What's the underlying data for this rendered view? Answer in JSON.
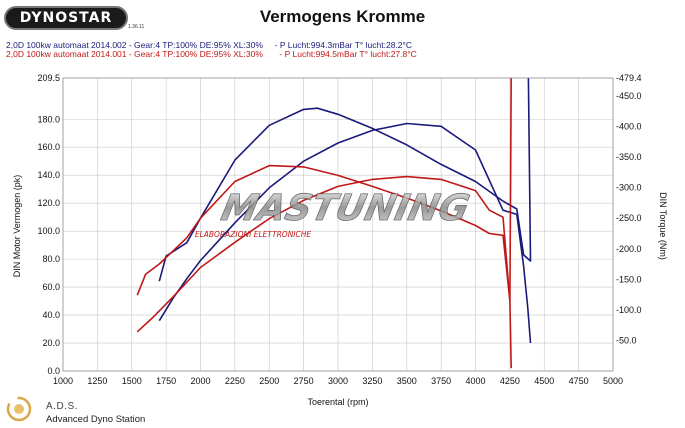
{
  "header": {
    "logo_text": "DYNOSTAR",
    "logo_version": "1.36.11",
    "title": "Vermogens Kromme",
    "runs": [
      "2,0D 100kw automaat 2014.002 - Gear:4 TP:100% DE:95% XL:30%     - P Lucht:994.3mBar T° lucht:28.2°C",
      "2,0D 100kw automaat 2014.001 - Gear:4 TP:100% DE:95% XL:30%       - P Lucht:994.5mBar T° lucht:27.8°C"
    ]
  },
  "watermark": {
    "brand_main": "MASTUNING",
    "brand_sub": "ELABORAZIONI ELETTRONICHE"
  },
  "footer": {
    "brand": "A.D.S.",
    "subtitle": "Advanced Dyno Station"
  },
  "colors": {
    "run_002": "#1a1a7a",
    "run_001": "#c01818",
    "grid": "#c8c8c8"
  },
  "chart_data": {
    "type": "line",
    "title": "Vermogens Kromme",
    "xlabel": "Toerental (rpm)",
    "ylabel_left": "DIN Motor Vermogen (pk)",
    "ylabel_right": "DIN Torque (Nm)",
    "xlim": [
      1000,
      5000
    ],
    "ylim_left": [
      0,
      209.5
    ],
    "ylim_right": [
      0,
      479.4
    ],
    "x_ticks": [
      "1000",
      "1250",
      "1500",
      "1750",
      "2000",
      "2250",
      "2500",
      "2750",
      "3000",
      "3250",
      "3500",
      "3750",
      "4000",
      "4250",
      "4500",
      "4750",
      "5000"
    ],
    "y_left_ticks": [
      "0.0",
      "20.0",
      "40.0",
      "60.0",
      "80.0",
      "100.0",
      "120.0",
      "140.0",
      "160.0",
      "180.0",
      "209.5"
    ],
    "y_right_ticks": [
      "-50.0",
      "-100.0",
      "-150.0",
      "-200.0",
      "-250.0",
      "-300.0",
      "-350.0",
      "-400.0",
      "-450.0",
      "-479.4"
    ],
    "grid": true,
    "series": [
      {
        "name": "2,0D 100kw automaat 2014.002",
        "color": "#1a1a7a",
        "axis": "left",
        "points": [
          [
            1700,
            36
          ],
          [
            1800,
            52
          ],
          [
            1900,
            66
          ],
          [
            2000,
            79
          ],
          [
            2250,
            106
          ],
          [
            2500,
            131
          ],
          [
            2750,
            150
          ],
          [
            3000,
            163
          ],
          [
            3250,
            172
          ],
          [
            3500,
            177
          ],
          [
            3750,
            175
          ],
          [
            4000,
            158
          ],
          [
            4200,
            115
          ],
          [
            4300,
            112
          ],
          [
            4350,
            75
          ],
          [
            4380,
            45
          ],
          [
            4400,
            20
          ]
        ]
      },
      {
        "name": "2,0D 100kw automaat 2014.002",
        "color": "#1a1a7a",
        "axis": "right",
        "points": [
          [
            1700,
            147
          ],
          [
            1750,
            188
          ],
          [
            1900,
            210
          ],
          [
            2000,
            250
          ],
          [
            2250,
            345
          ],
          [
            2500,
            402
          ],
          [
            2750,
            428
          ],
          [
            2850,
            430
          ],
          [
            3000,
            420
          ],
          [
            3250,
            397
          ],
          [
            3500,
            370
          ],
          [
            3750,
            338
          ],
          [
            4000,
            310
          ],
          [
            4200,
            278
          ],
          [
            4300,
            265
          ],
          [
            4350,
            190
          ],
          [
            4400,
            180
          ],
          [
            4385,
            479
          ]
        ]
      },
      {
        "name": "2,0D 100kw automaat 2014.001",
        "color": "#c01818",
        "axis": "left",
        "points": [
          [
            1540,
            28
          ],
          [
            1650,
            38
          ],
          [
            1800,
            53
          ],
          [
            2000,
            74
          ],
          [
            2250,
            92
          ],
          [
            2500,
            109
          ],
          [
            2750,
            122
          ],
          [
            3000,
            132
          ],
          [
            3250,
            137
          ],
          [
            3500,
            139
          ],
          [
            3750,
            137
          ],
          [
            4000,
            129
          ],
          [
            4100,
            115
          ],
          [
            4200,
            110
          ],
          [
            4250,
            50
          ],
          [
            4260,
            2
          ]
        ]
      },
      {
        "name": "2,0D 100kw automaat 2014.001",
        "color": "#c01818",
        "axis": "right",
        "points": [
          [
            1540,
            124
          ],
          [
            1600,
            158
          ],
          [
            1700,
            175
          ],
          [
            1900,
            218
          ],
          [
            2000,
            250
          ],
          [
            2250,
            310
          ],
          [
            2500,
            336
          ],
          [
            2750,
            334
          ],
          [
            3000,
            320
          ],
          [
            3250,
            302
          ],
          [
            3500,
            283
          ],
          [
            3750,
            262
          ],
          [
            4000,
            238
          ],
          [
            4100,
            225
          ],
          [
            4200,
            222
          ],
          [
            4250,
            115
          ],
          [
            4260,
            479
          ]
        ]
      }
    ]
  }
}
